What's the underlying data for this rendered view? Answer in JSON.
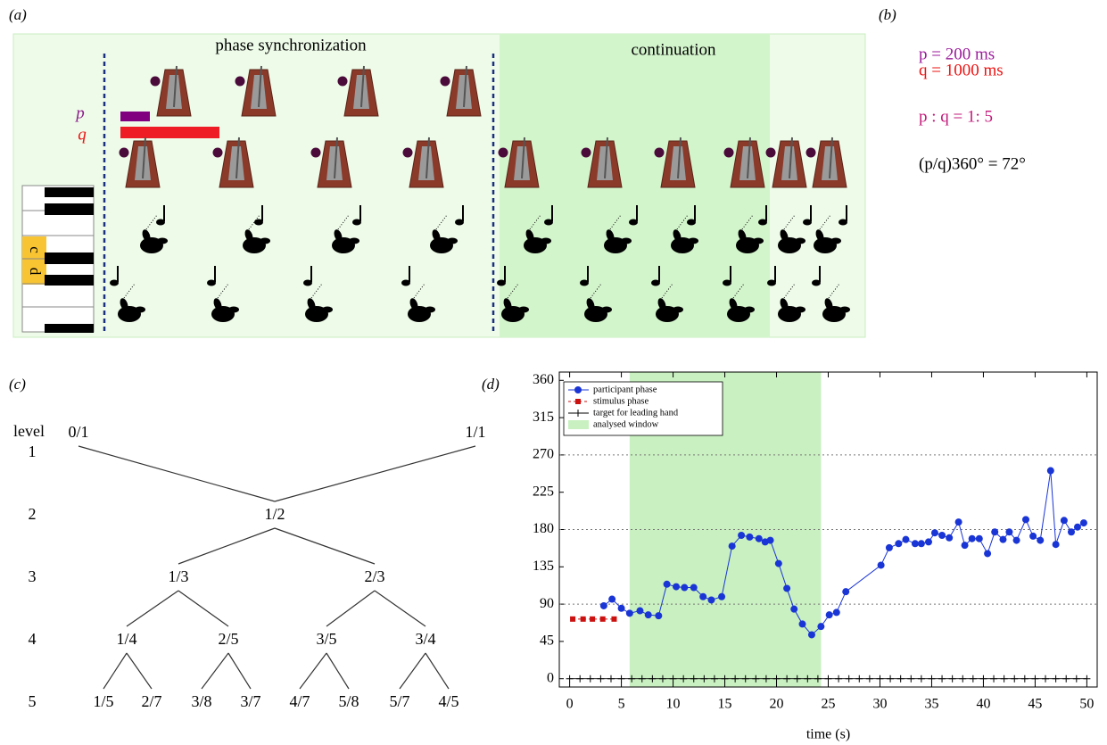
{
  "panel_a": {
    "label": "(a)",
    "sync_title": "phase synchronization",
    "continuation_title": "continuation",
    "p_label": "p",
    "q_label": "q",
    "keys": [
      "c",
      "d"
    ]
  },
  "panel_b": {
    "label": "(b)",
    "lines": [
      "p = 200 ms",
      "q = 1000 ms",
      "p : q = 1: 5",
      "(p/q)360° = 72°"
    ]
  },
  "panel_c": {
    "label": "(c)",
    "level_header": "level",
    "levels": [
      1,
      2,
      3,
      4,
      5
    ],
    "nodes": [
      "0/1",
      "1/1",
      "1/2",
      "1/3",
      "2/3",
      "1/4",
      "2/5",
      "3/5",
      "3/4",
      "1/5",
      "2/7",
      "3/8",
      "3/7",
      "4/7",
      "5/8",
      "5/7",
      "4/5"
    ]
  },
  "chart_data": {
    "type": "line",
    "panel_label": "(d)",
    "xlabel": "time (s)",
    "xlim": [
      -1,
      51
    ],
    "ylim": [
      -10,
      370
    ],
    "xticks": [
      0,
      5,
      10,
      15,
      20,
      25,
      30,
      35,
      40,
      45,
      50
    ],
    "yticks": [
      0,
      45,
      90,
      135,
      180,
      225,
      270,
      315,
      360
    ],
    "legend": "upper left",
    "window": {
      "name": "analysed window",
      "color": "#c8f0c0",
      "x": [
        5.8,
        24.3
      ]
    },
    "series": [
      {
        "name": "participant phase",
        "color": "#1a35d6",
        "x": [
          3.3,
          4.1,
          5.0,
          5.8,
          6.8,
          7.6,
          8.6,
          9.4,
          10.3,
          11.1,
          12.0,
          12.9,
          13.7,
          14.7,
          15.7,
          16.6,
          17.4,
          18.3,
          18.9,
          19.4,
          20.2,
          21.0,
          21.7,
          22.5,
          23.4,
          24.3,
          25.1,
          25.8,
          26.7,
          30.1,
          30.9,
          31.8,
          32.5,
          33.4,
          34.0,
          34.7,
          35.3,
          36.0,
          36.7,
          37.6,
          38.2,
          38.9,
          39.6,
          40.4,
          41.1,
          41.9,
          42.5,
          43.2,
          44.1,
          44.8,
          45.5,
          46.5,
          47.0,
          47.8,
          48.5,
          49.1,
          49.7
        ],
        "values": [
          88,
          96,
          85,
          79,
          82,
          77,
          76,
          114,
          111,
          110,
          110,
          99,
          95,
          99,
          160,
          173,
          171,
          169,
          165,
          167,
          139,
          109,
          84,
          66,
          53,
          63,
          77,
          80,
          105,
          137,
          158,
          163,
          168,
          163,
          163,
          165,
          176,
          173,
          170,
          189,
          161,
          169,
          169,
          151,
          177,
          168,
          177,
          167,
          192,
          172,
          167,
          251,
          162,
          191,
          177,
          183,
          188
        ]
      },
      {
        "name": "stimulus phase",
        "color": "#cc1111",
        "x": [
          0.3,
          1.3,
          2.2,
          3.2,
          4.3
        ],
        "values": [
          72,
          72,
          72,
          72,
          72
        ]
      },
      {
        "name": "target for leading hand",
        "color": "#000000",
        "x": [
          0,
          1,
          2,
          3,
          4,
          5,
          6,
          7,
          8,
          9,
          10,
          11,
          12,
          13,
          14,
          15,
          16,
          17,
          18,
          19,
          20,
          21,
          22,
          23,
          24,
          25,
          26,
          27,
          28,
          29,
          30,
          31,
          32,
          33,
          34,
          35,
          36,
          37,
          38,
          39,
          40,
          41,
          42,
          43,
          44,
          45,
          46,
          47,
          48,
          49,
          50
        ],
        "values": [
          0,
          0,
          0,
          0,
          0,
          0,
          0,
          0,
          0,
          0,
          0,
          0,
          0,
          0,
          0,
          0,
          0,
          0,
          0,
          0,
          0,
          0,
          0,
          0,
          0,
          0,
          0,
          0,
          0,
          0,
          0,
          0,
          0,
          0,
          0,
          0,
          0,
          0,
          0,
          0,
          0,
          0,
          0,
          0,
          0,
          0,
          0,
          0,
          0,
          0,
          0
        ]
      }
    ]
  }
}
